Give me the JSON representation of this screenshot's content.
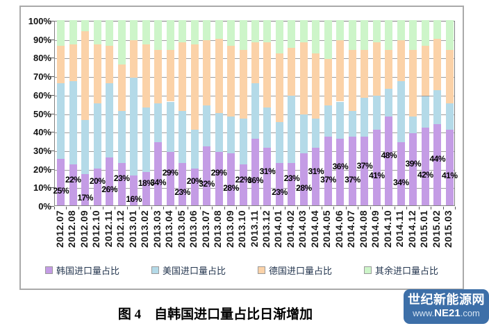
{
  "chart_data": {
    "type": "bar",
    "stacked": true,
    "percent_stacked": true,
    "grid": true,
    "legend_position": "bottom",
    "ylim": [
      0,
      100
    ],
    "y_ticks": [
      "0%",
      "10%",
      "20%",
      "30%",
      "40%",
      "50%",
      "60%",
      "70%",
      "80%",
      "90%",
      "100%"
    ],
    "x_label_rotation": 90,
    "categories": [
      "2012.07",
      "2012.08",
      "2012.09",
      "2012.10",
      "2012.11",
      "2012.12",
      "2013.01",
      "2013.02",
      "2013.03",
      "2013.04",
      "2013.05",
      "2013.06",
      "2013.07",
      "2013.08",
      "2013.09",
      "2013.10",
      "2013.11",
      "2013.12",
      "2014.01",
      "2014.02",
      "2014.03",
      "2014.04",
      "2014.05",
      "2014.06",
      "2014.07",
      "2014.08",
      "2014.09",
      "2014.10",
      "2014.11",
      "2014.12",
      "2015.01",
      "2015.02",
      "2015.03"
    ],
    "series": [
      {
        "name": "韩国进口量占比",
        "color": "#c49ce5",
        "values": [
          25,
          22,
          17,
          20,
          26,
          23,
          16,
          18,
          34,
          29,
          23,
          20,
          32,
          29,
          28,
          22,
          36,
          31,
          23,
          23,
          28,
          31,
          37,
          36,
          37,
          37,
          41,
          48,
          34,
          39,
          42,
          44,
          41
        ]
      },
      {
        "name": "美国进口量占比",
        "color": "#b4dae8",
        "values": [
          41,
          45,
          29,
          35,
          40,
          28,
          53,
          35,
          21,
          27,
          28,
          21,
          22,
          21,
          20,
          25,
          30,
          22,
          22,
          36,
          21,
          16,
          17,
          20,
          14,
          21,
          18,
          15,
          33,
          9,
          17,
          18,
          14
        ]
      },
      {
        "name": "德国进口量占比",
        "color": "#fbd2a8",
        "values": [
          20,
          20,
          48,
          32,
          20,
          25,
          20,
          34,
          29,
          28,
          37,
          46,
          35,
          40,
          38,
          37,
          22,
          35,
          37,
          26,
          39,
          35,
          25,
          33,
          33,
          26,
          29,
          21,
          22,
          36,
          27,
          28,
          29
        ]
      },
      {
        "name": "其余进口量占比",
        "color": "#cdf5c9",
        "values": [
          14,
          13,
          6,
          13,
          14,
          24,
          11,
          13,
          16,
          16,
          12,
          13,
          11,
          10,
          14,
          16,
          12,
          12,
          18,
          15,
          12,
          18,
          21,
          11,
          16,
          16,
          12,
          16,
          11,
          16,
          14,
          10,
          16
        ]
      }
    ],
    "data_labels": {
      "series": "韩国进口量占比",
      "format": "{value}%"
    }
  },
  "caption": "图 4　自韩国进口量占比日渐增加",
  "watermark": {
    "line1": "世纪新能源网",
    "line2_prefix": "www.",
    "line2_bold": "NE21",
    "line2_suffix": ".com",
    "bg_color": "#3d6fa8"
  }
}
